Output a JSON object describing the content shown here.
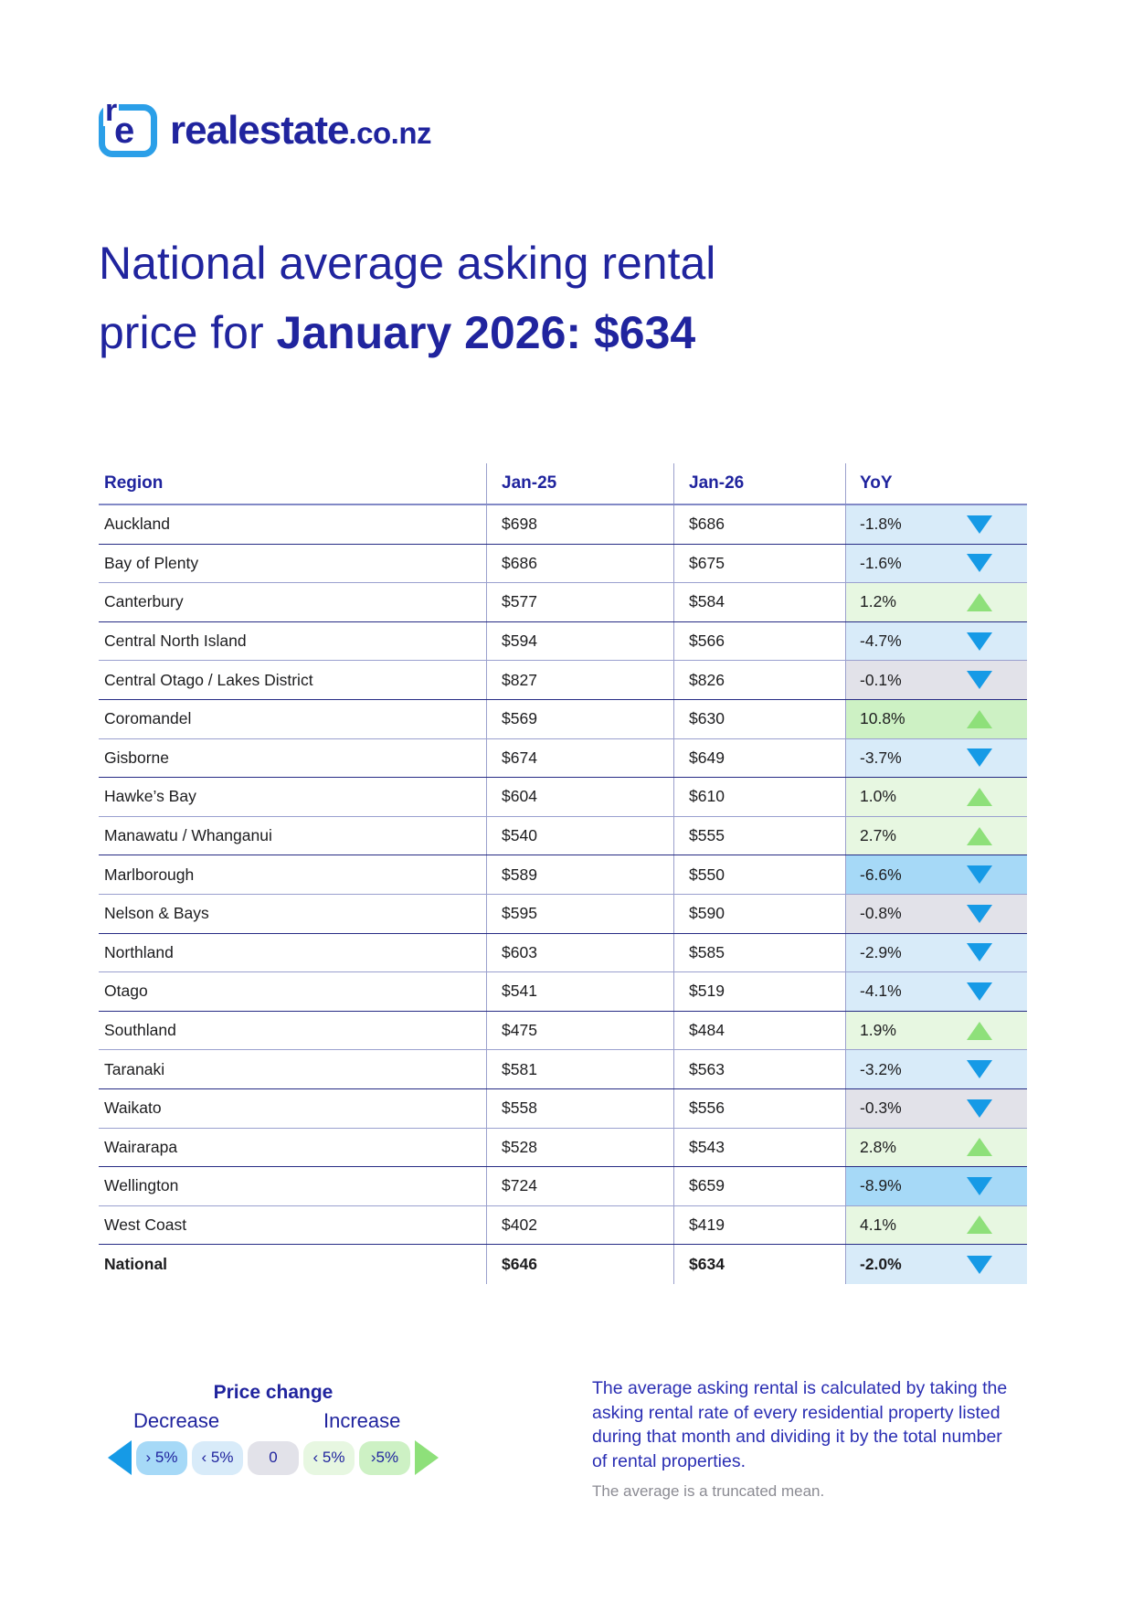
{
  "logo": {
    "icon_r": "r",
    "icon_e": "e",
    "brand": "realestate",
    "tld": ".co.nz"
  },
  "title": {
    "line1": "National average asking rental",
    "line2_prefix": "price for ",
    "line2_bold": "January 2026: $634"
  },
  "table": {
    "columns": [
      "Region",
      "Jan-25",
      "Jan-26",
      "YoY"
    ],
    "rows": [
      {
        "region": "Auckland",
        "jan25": "$698",
        "jan26": "$686",
        "yoy": "-1.8%",
        "band": "down_lt5",
        "dir": "down",
        "bold": false
      },
      {
        "region": "Bay of Plenty",
        "jan25": "$686",
        "jan26": "$675",
        "yoy": "-1.6%",
        "band": "down_lt5",
        "dir": "down",
        "bold": false
      },
      {
        "region": "Canterbury",
        "jan25": "$577",
        "jan26": "$584",
        "yoy": "1.2%",
        "band": "up_lt5",
        "dir": "up",
        "bold": false
      },
      {
        "region": "Central North Island",
        "jan25": "$594",
        "jan26": "$566",
        "yoy": "-4.7%",
        "band": "down_lt5",
        "dir": "down",
        "bold": false
      },
      {
        "region": "Central Otago / Lakes District",
        "jan25": "$827",
        "jan26": "$826",
        "yoy": "-0.1%",
        "band": "zero",
        "dir": "down",
        "bold": false
      },
      {
        "region": "Coromandel",
        "jan25": "$569",
        "jan26": "$630",
        "yoy": "10.8%",
        "band": "up_gt5",
        "dir": "up",
        "bold": false
      },
      {
        "region": "Gisborne",
        "jan25": "$674",
        "jan26": "$649",
        "yoy": "-3.7%",
        "band": "down_lt5",
        "dir": "down",
        "bold": false
      },
      {
        "region": "Hawke’s Bay",
        "jan25": "$604",
        "jan26": "$610",
        "yoy": "1.0%",
        "band": "up_lt5",
        "dir": "up",
        "bold": false
      },
      {
        "region": "Manawatu / Whanganui",
        "jan25": "$540",
        "jan26": "$555",
        "yoy": "2.7%",
        "band": "up_lt5",
        "dir": "up",
        "bold": false
      },
      {
        "region": "Marlborough",
        "jan25": "$589",
        "jan26": "$550",
        "yoy": "-6.6%",
        "band": "down_gt5",
        "dir": "down",
        "bold": false
      },
      {
        "region": "Nelson & Bays",
        "jan25": "$595",
        "jan26": "$590",
        "yoy": "-0.8%",
        "band": "zero",
        "dir": "down",
        "bold": false
      },
      {
        "region": "Northland",
        "jan25": "$603",
        "jan26": "$585",
        "yoy": "-2.9%",
        "band": "down_lt5",
        "dir": "down",
        "bold": false
      },
      {
        "region": "Otago",
        "jan25": "$541",
        "jan26": "$519",
        "yoy": "-4.1%",
        "band": "down_lt5",
        "dir": "down",
        "bold": false
      },
      {
        "region": "Southland",
        "jan25": "$475",
        "jan26": "$484",
        "yoy": "1.9%",
        "band": "up_lt5",
        "dir": "up",
        "bold": false
      },
      {
        "region": "Taranaki",
        "jan25": "$581",
        "jan26": "$563",
        "yoy": "-3.2%",
        "band": "down_lt5",
        "dir": "down",
        "bold": false
      },
      {
        "region": "Waikato",
        "jan25": "$558",
        "jan26": "$556",
        "yoy": "-0.3%",
        "band": "zero",
        "dir": "down",
        "bold": false
      },
      {
        "region": "Wairarapa",
        "jan25": "$528",
        "jan26": "$543",
        "yoy": "2.8%",
        "band": "up_lt5",
        "dir": "up",
        "bold": false
      },
      {
        "region": "Wellington",
        "jan25": "$724",
        "jan26": "$659",
        "yoy": "-8.9%",
        "band": "down_gt5",
        "dir": "down",
        "bold": false
      },
      {
        "region": "West Coast",
        "jan25": "$402",
        "jan26": "$419",
        "yoy": "4.1%",
        "band": "up_lt5",
        "dir": "up",
        "bold": false
      },
      {
        "region": "National",
        "jan25": "$646",
        "jan26": "$634",
        "yoy": "-2.0%",
        "band": "down_lt5",
        "dir": "down",
        "bold": true
      }
    ]
  },
  "chart_data": {
    "type": "table",
    "title": "National average asking rental price for January 2026: $634",
    "columns": [
      "Region",
      "Jan-25",
      "Jan-26",
      "YoY"
    ],
    "rows": [
      [
        "Auckland",
        698,
        686,
        "-1.8%"
      ],
      [
        "Bay of Plenty",
        686,
        675,
        "-1.6%"
      ],
      [
        "Canterbury",
        577,
        584,
        "1.2%"
      ],
      [
        "Central North Island",
        594,
        566,
        "-4.7%"
      ],
      [
        "Central Otago / Lakes District",
        827,
        826,
        "-0.1%"
      ],
      [
        "Coromandel",
        569,
        630,
        "10.8%"
      ],
      [
        "Gisborne",
        674,
        649,
        "-3.7%"
      ],
      [
        "Hawke’s Bay",
        604,
        610,
        "1.0%"
      ],
      [
        "Manawatu / Whanganui",
        540,
        555,
        "2.7%"
      ],
      [
        "Marlborough",
        589,
        550,
        "-6.6%"
      ],
      [
        "Nelson & Bays",
        595,
        590,
        "-0.8%"
      ],
      [
        "Northland",
        603,
        585,
        "-2.9%"
      ],
      [
        "Otago",
        541,
        519,
        "-4.1%"
      ],
      [
        "Southland",
        475,
        484,
        "1.9%"
      ],
      [
        "Taranaki",
        581,
        563,
        "-3.2%"
      ],
      [
        "Waikato",
        558,
        556,
        "-0.3%"
      ],
      [
        "Wairarapa",
        528,
        543,
        "2.8%"
      ],
      [
        "Wellington",
        724,
        659,
        "-8.9%"
      ],
      [
        "West Coast",
        402,
        419,
        "4.1%"
      ],
      [
        "National",
        646,
        634,
        "-2.0%"
      ]
    ]
  },
  "legend": {
    "title": "Price change",
    "decrease_label": "Decrease",
    "increase_label": "Increase",
    "pills": [
      {
        "label": "› 5%",
        "band": "down_gt5"
      },
      {
        "label": "‹ 5%",
        "band": "down_lt5"
      },
      {
        "label": "0",
        "band": "zero"
      },
      {
        "label": "‹ 5%",
        "band": "up_lt5"
      },
      {
        "label": "›5%",
        "band": "up_gt5"
      }
    ]
  },
  "footnote": {
    "main": "The average asking rental is calculated by taking the asking rental rate of every residential property listed during that month and dividing it by the total number of rental properties.",
    "sub": "The average is a truncated mean."
  },
  "colors": {
    "navy": "#20249e",
    "triangle_down_blue": "#169ae6",
    "triangle_up_green": "#8ee07a",
    "logo_blue": "#2b9fe8",
    "bands": {
      "down_gt5": "#a6d9f7",
      "down_lt5": "#d8ebf9",
      "zero": "#e2e2e9",
      "up_lt5": "#e7f7e1",
      "up_gt5": "#cdf1c4"
    }
  }
}
